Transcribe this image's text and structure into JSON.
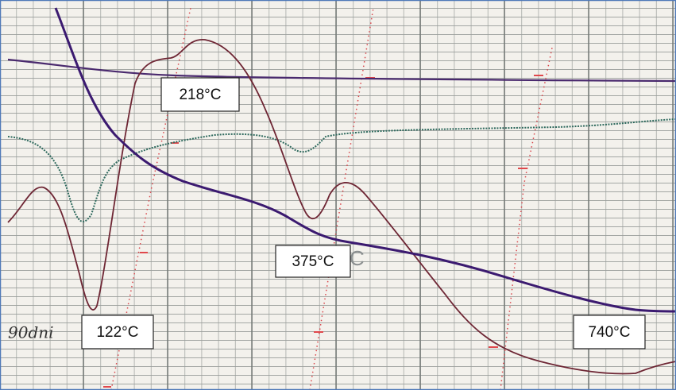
{
  "annotations": [
    "218°C",
    "122°C",
    "375°C",
    "740°C"
  ],
  "handwritten": [
    "90dni"
  ]
}
